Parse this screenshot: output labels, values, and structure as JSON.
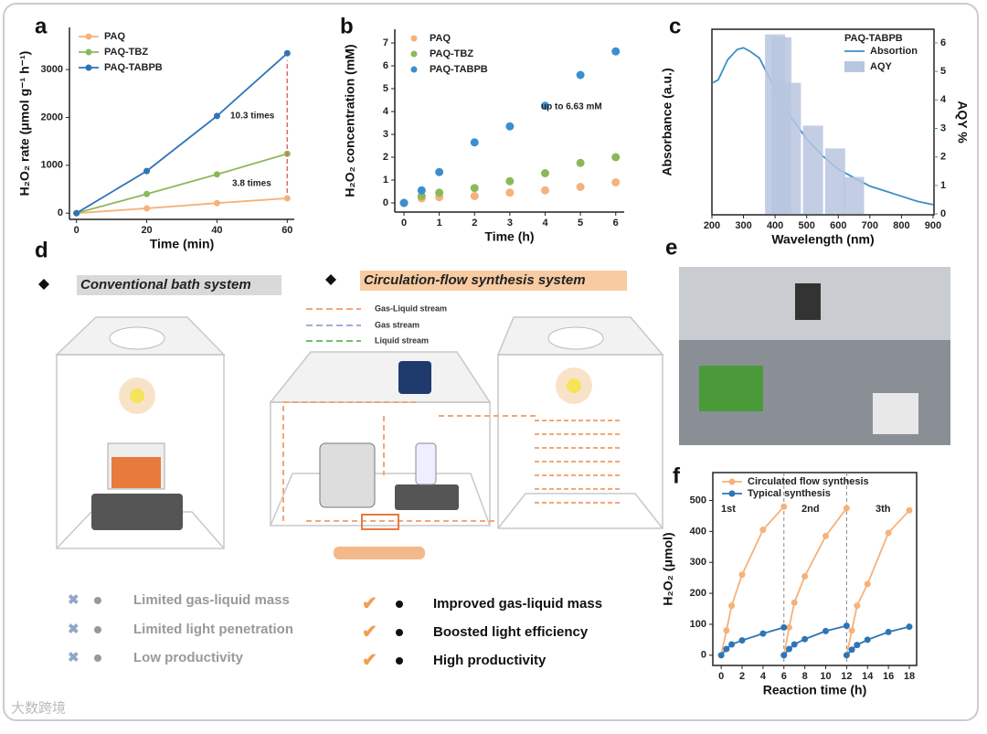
{
  "chart_data": [
    {
      "type": "line",
      "label": "a",
      "xlabel": "Time (min)",
      "ylabel": "H₂O₂ rate (μmol g⁻¹ h⁻¹)",
      "x": [
        0,
        20,
        40,
        60
      ],
      "xlim": [
        -2,
        62
      ],
      "xticks": [
        0,
        20,
        40,
        60
      ],
      "ylim": [
        -130,
        3880
      ],
      "yticks": [
        0,
        1000,
        2000,
        3000
      ],
      "frame": "axes",
      "legend": "upper left",
      "series": [
        {
          "name": "PAQ",
          "color": "#f5b27a",
          "values": [
            0,
            100,
            210,
            310
          ]
        },
        {
          "name": "PAQ-TBZ",
          "color": "#8db85a",
          "values": [
            0,
            400,
            810,
            1240
          ]
        },
        {
          "name": "PAQ-TABPB",
          "color": "#2e75b6",
          "values": [
            0,
            880,
            2030,
            3340
          ]
        }
      ],
      "annotations": [
        "10.3  times",
        "3.8  times"
      ]
    },
    {
      "type": "scatter",
      "label": "b",
      "xlabel": "Time (h)",
      "ylabel": "H₂O₂ concentration (mM)",
      "x": [
        0,
        0.5,
        1,
        2,
        3,
        4,
        5,
        6
      ],
      "xlim": [
        -0.26,
        6.24
      ],
      "xticks": [
        0,
        1,
        2,
        3,
        4,
        5,
        6
      ],
      "ylim": [
        -0.4,
        7.6
      ],
      "yticks": [
        0,
        1,
        2,
        3,
        4,
        5,
        6,
        7
      ],
      "frame": "axes",
      "legend": "upper left",
      "series": [
        {
          "name": "PAQ",
          "color": "#f5b27a",
          "values": [
            0,
            0.2,
            0.25,
            0.3,
            0.45,
            0.55,
            0.7,
            0.9
          ]
        },
        {
          "name": "PAQ-TBZ",
          "color": "#8db85a",
          "values": [
            0,
            0.3,
            0.45,
            0.65,
            0.95,
            1.3,
            1.75,
            2.0
          ]
        },
        {
          "name": "PAQ-TABPB",
          "color": "#3a8fd0",
          "values": [
            0,
            0.55,
            1.35,
            2.65,
            3.35,
            4.25,
            5.6,
            6.63
          ]
        }
      ],
      "annotations": [
        "up to 6.63 mM"
      ]
    },
    {
      "type": "combo",
      "label": "c",
      "xlabel": "Wavelength (nm)",
      "ylabel": "Absorbance (a.u.)",
      "y2label": "AQY %",
      "xlim": [
        200,
        903
      ],
      "xticks": [
        200,
        300,
        400,
        500,
        600,
        700,
        800,
        900
      ],
      "ylim": [
        0,
        1.1
      ],
      "y2lim": [
        -0.03,
        6.48
      ],
      "y2ticks": [
        0,
        1,
        2,
        3,
        4,
        5,
        6
      ],
      "frame": "box",
      "legend": "upper right",
      "legend_title": "PAQ-TABPB",
      "series": [
        {
          "name": "Absortion",
          "type": "line",
          "color": "#3a8fc8",
          "x": [
            200,
            220,
            250,
            280,
            300,
            320,
            350,
            380,
            400,
            450,
            500,
            550,
            600,
            650,
            700,
            750,
            800,
            850,
            900
          ],
          "values": [
            0.78,
            0.8,
            0.92,
            0.98,
            0.99,
            0.97,
            0.93,
            0.82,
            0.74,
            0.58,
            0.45,
            0.35,
            0.27,
            0.22,
            0.17,
            0.14,
            0.11,
            0.08,
            0.06
          ]
        },
        {
          "name": "AQY",
          "type": "bar",
          "axis": "y2",
          "color": "#b9c6df",
          "x": [
            400,
            420,
            450,
            520,
            590,
            650
          ],
          "values": [
            6.3,
            6.2,
            4.6,
            3.1,
            2.3,
            1.3
          ]
        }
      ],
      "annotations": []
    },
    {
      "type": "line",
      "label": "f",
      "xlabel": "Reaction time (h)",
      "ylabel": "H₂O₂ (μmol)",
      "x": [
        0,
        0.5,
        1,
        2,
        4,
        6,
        6,
        6,
        6.5,
        7,
        8,
        10,
        12,
        12,
        12,
        12.5,
        13,
        14,
        16,
        18
      ],
      "xlim": [
        -0.8,
        18.7
      ],
      "xticks": [
        0,
        2,
        4,
        6,
        8,
        10,
        12,
        14,
        16,
        18
      ],
      "ylim": [
        -33,
        590
      ],
      "yticks": [
        0,
        100,
        200,
        300,
        400,
        500
      ],
      "frame": "box",
      "legend": "upper left",
      "series": [
        {
          "name": "Circulated flow synthesis",
          "color": "#f5b27a",
          "values": [
            0,
            80,
            160,
            260,
            405,
            480,
            null,
            0,
            90,
            170,
            255,
            385,
            475,
            null,
            0,
            80,
            160,
            230,
            395,
            468
          ]
        },
        {
          "name": "Typical synthesis",
          "color": "#2e75b6",
          "values": [
            0,
            20,
            35,
            48,
            70,
            90,
            null,
            0,
            20,
            35,
            52,
            78,
            95,
            null,
            0,
            18,
            33,
            50,
            75,
            92
          ]
        }
      ],
      "annotations": [
        "1st",
        "2nd",
        "3th"
      ]
    }
  ],
  "diagram": {
    "label": "d",
    "conventional": "Conventional bath system",
    "flow": "Circulation-flow synthesis system",
    "streams": [
      "Gas-Liquid stream",
      "Gas stream",
      "Liquid stream"
    ],
    "drawbacks": [
      "Limited gas-liquid mass",
      "Limited light penetration",
      "Low productivity"
    ],
    "advantages": [
      "Improved  gas-liquid mass",
      "Boosted light efficiency",
      "High productivity"
    ]
  },
  "photo": {
    "label": "e"
  },
  "watermark": "大数跨境"
}
